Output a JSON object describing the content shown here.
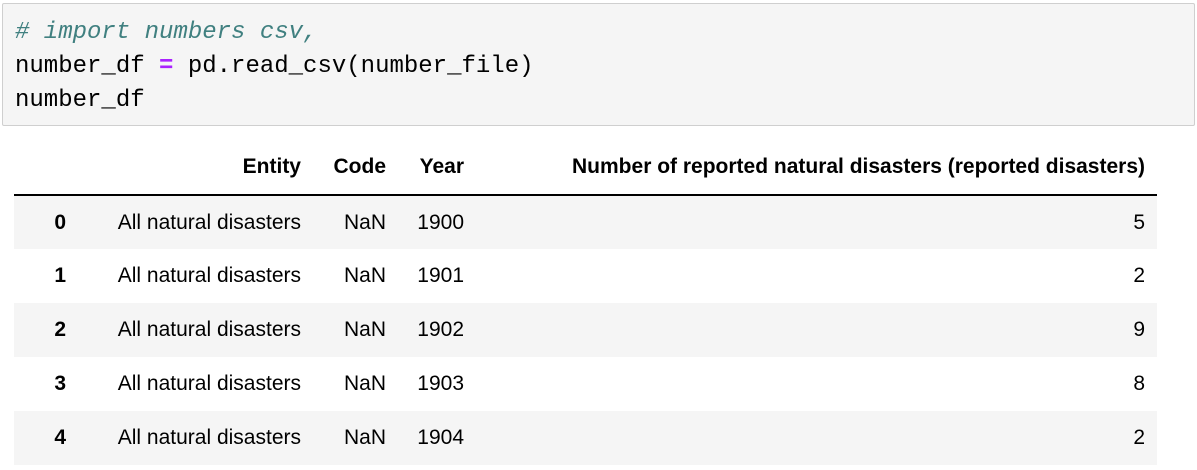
{
  "code_cell": {
    "line1_comment": "# import numbers csv,",
    "line2_var": "number_df ",
    "line2_op": "=",
    "line2_rest": " pd.read_csv(number_file)",
    "line3": "number_df"
  },
  "table": {
    "columns": [
      "",
      "Entity",
      "Code",
      "Year",
      "Number of reported natural disasters (reported disasters)"
    ],
    "rows": [
      {
        "index": "0",
        "entity": "All natural disasters",
        "code": "NaN",
        "year": "1900",
        "number": "5"
      },
      {
        "index": "1",
        "entity": "All natural disasters",
        "code": "NaN",
        "year": "1901",
        "number": "2"
      },
      {
        "index": "2",
        "entity": "All natural disasters",
        "code": "NaN",
        "year": "1902",
        "number": "9"
      },
      {
        "index": "3",
        "entity": "All natural disasters",
        "code": "NaN",
        "year": "1903",
        "number": "8"
      },
      {
        "index": "4",
        "entity": "All natural disasters",
        "code": "NaN",
        "year": "1904",
        "number": "2"
      }
    ]
  }
}
